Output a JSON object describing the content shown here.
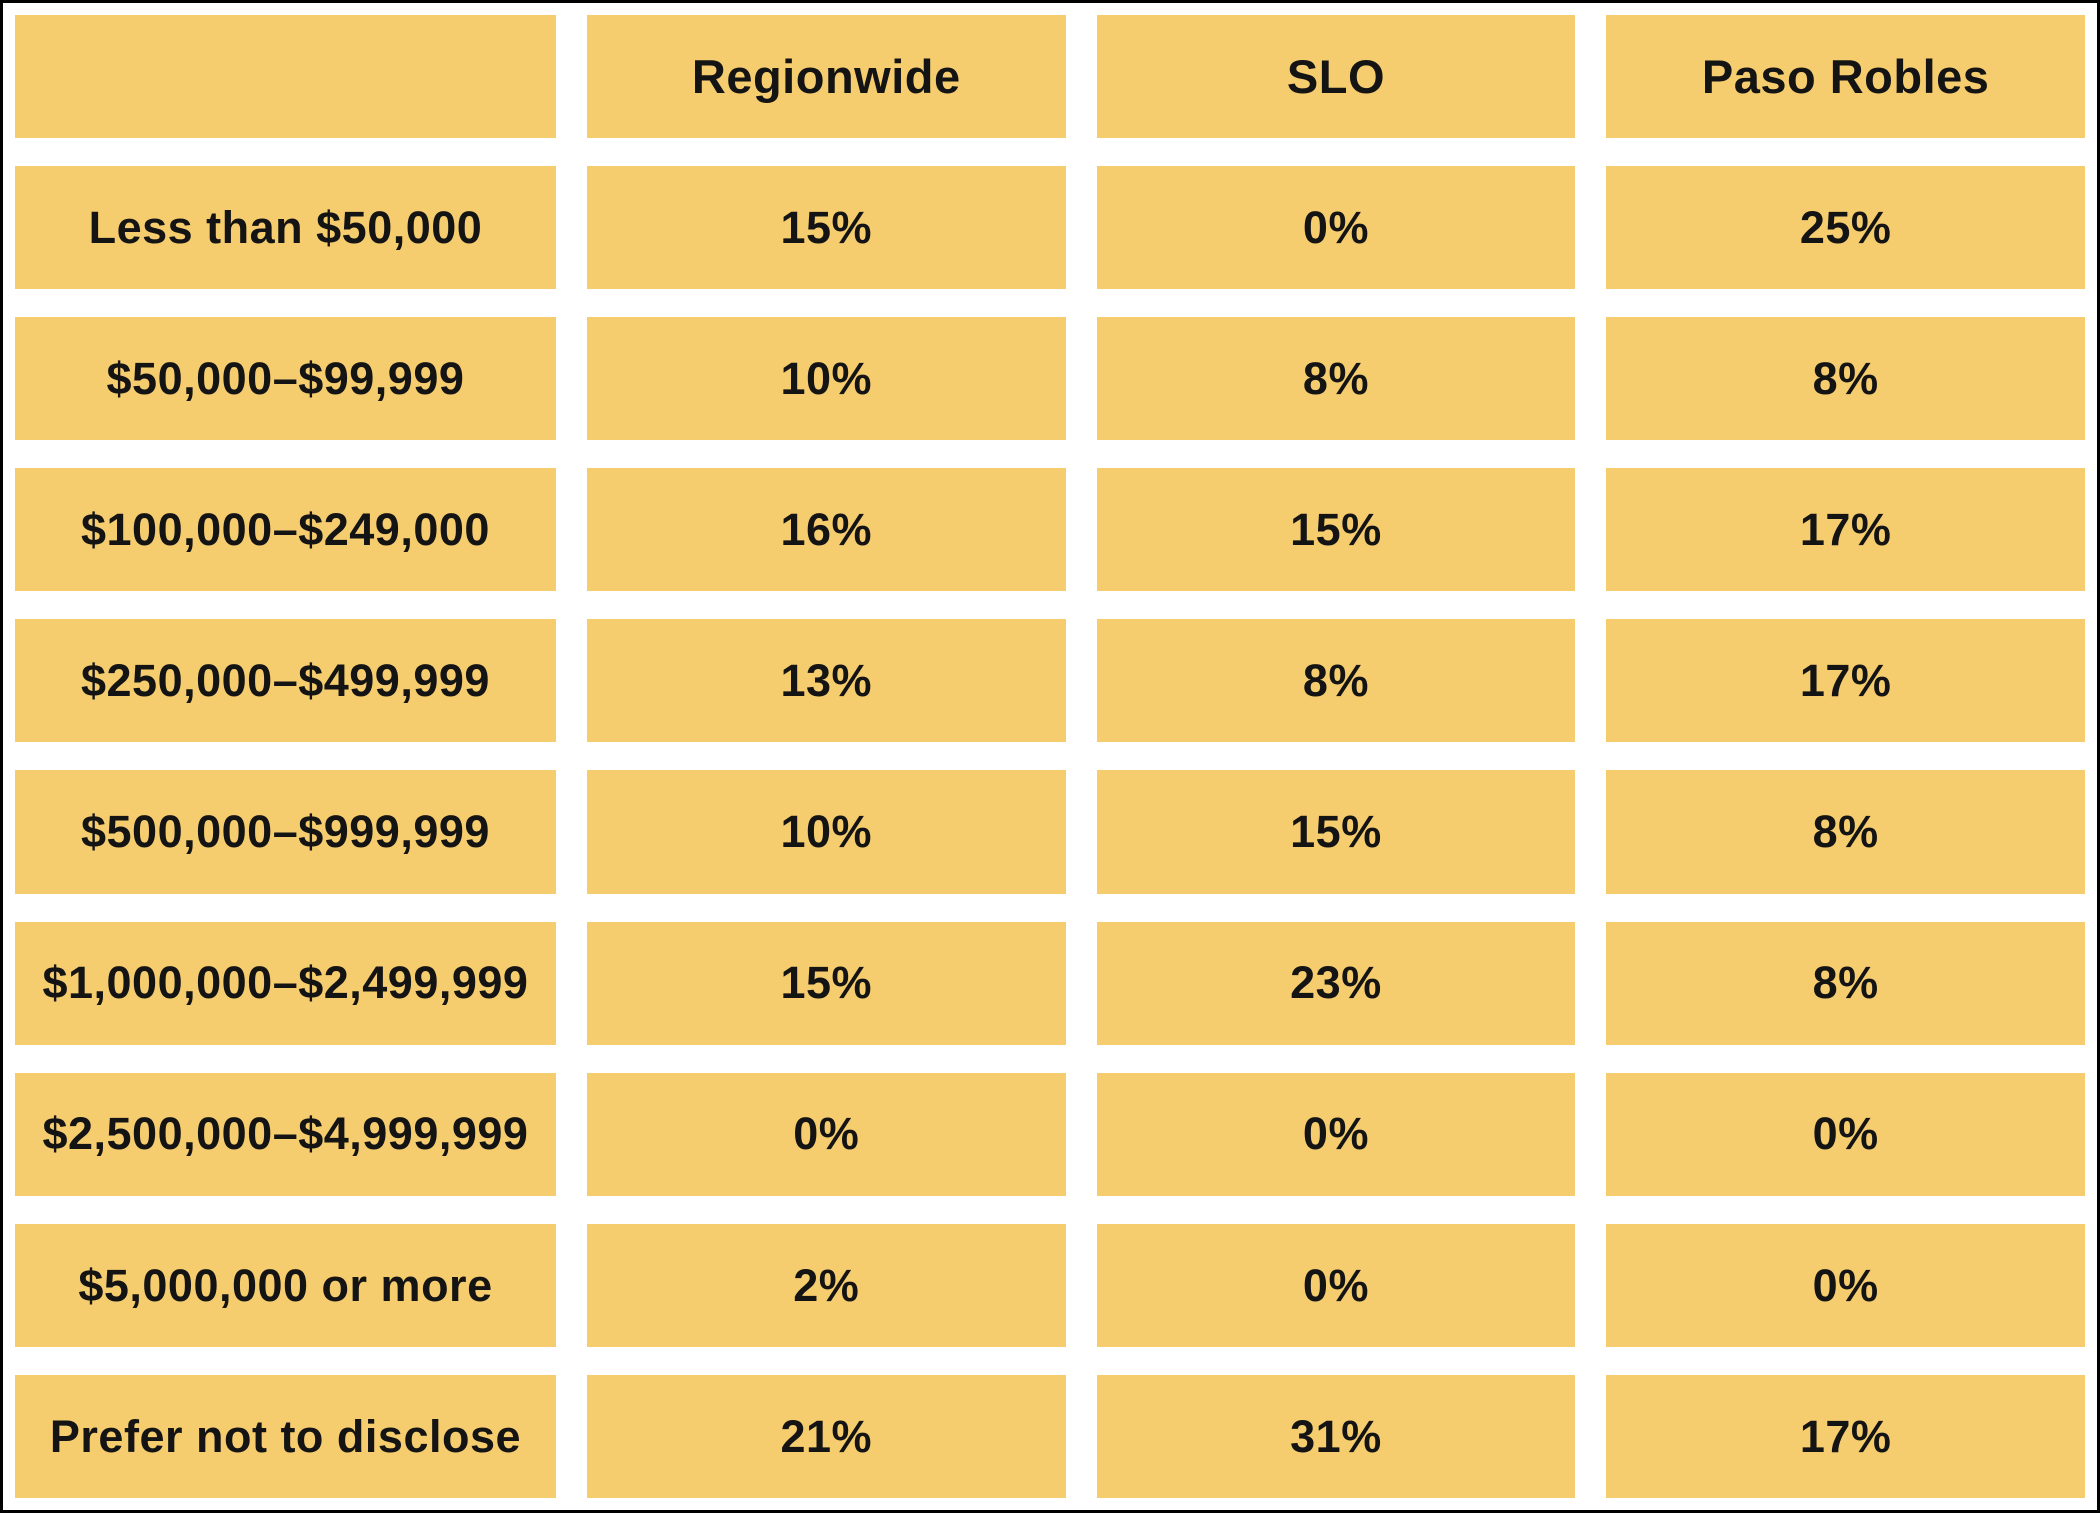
{
  "colors": {
    "cell-bg": "#F6CD6E",
    "text": "#141414",
    "frame": "#000000",
    "page-bg": "#FFFFFF"
  },
  "chart_data": {
    "type": "table",
    "title": "",
    "columns": [
      "",
      "Regionwide",
      "SLO",
      "Paso Robles"
    ],
    "rows": [
      {
        "label": "Less than $50,000",
        "values": [
          "15%",
          "0%",
          "25%"
        ]
      },
      {
        "label": "$50,000–$99,999",
        "values": [
          "10%",
          "8%",
          "8%"
        ]
      },
      {
        "label": "$100,000–$249,000",
        "values": [
          "16%",
          "15%",
          "17%"
        ]
      },
      {
        "label": "$250,000–$499,999",
        "values": [
          "13%",
          "8%",
          "17%"
        ]
      },
      {
        "label": "$500,000–$999,999",
        "values": [
          "10%",
          "15%",
          "8%"
        ]
      },
      {
        "label": "$1,000,000–$2,499,999",
        "values": [
          "15%",
          "23%",
          "8%"
        ]
      },
      {
        "label": "$2,500,000–$4,999,999",
        "values": [
          "0%",
          "0%",
          "0%"
        ]
      },
      {
        "label": "$5,000,000 or more",
        "values": [
          "2%",
          "0%",
          "0%"
        ]
      },
      {
        "label": "Prefer not to disclose",
        "values": [
          "21%",
          "31%",
          "17%"
        ]
      }
    ],
    "layout": {
      "grid": "4 columns x 10 rows",
      "gutter_color": "#FFFFFF",
      "outer_border": "black"
    }
  }
}
